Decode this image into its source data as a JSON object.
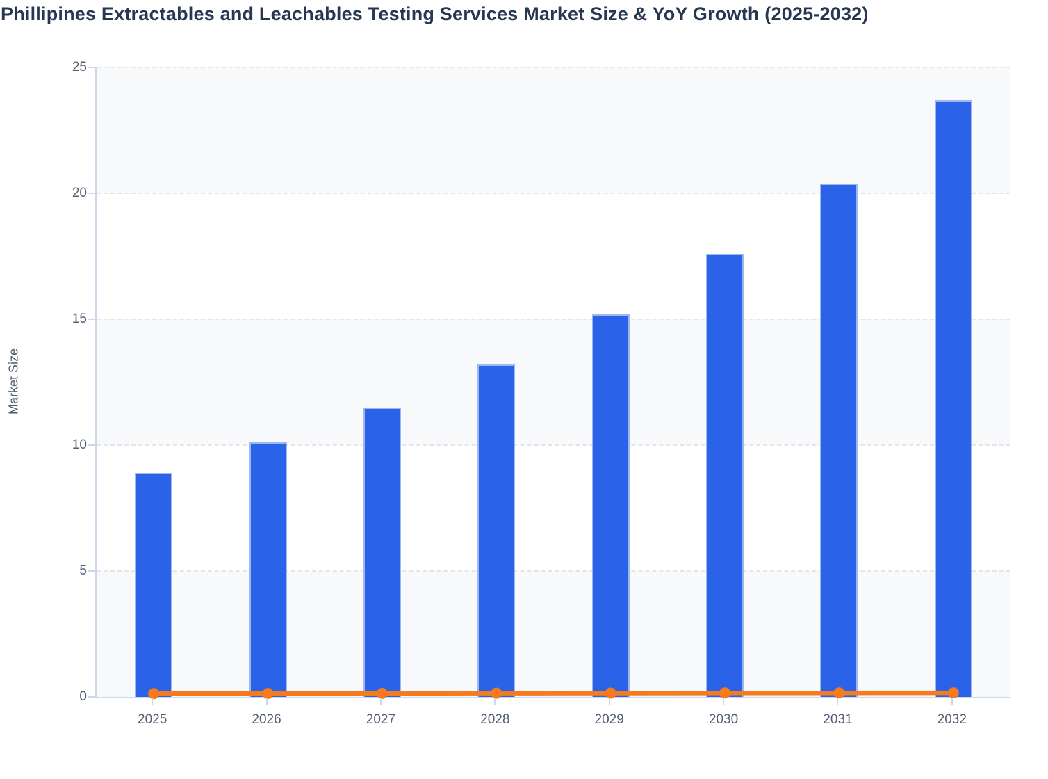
{
  "title": "Phillipines Extractables and Leachables Testing Services Market Size & YoY Growth (2025-2032)",
  "chart_data": {
    "type": "bar",
    "title": "Phillipines Extractables and Leachables Testing Services Market Size & YoY Growth (2025-2032)",
    "categories": [
      "2025",
      "2026",
      "2027",
      "2028",
      "2029",
      "2030",
      "2031",
      "2032"
    ],
    "series": [
      {
        "name": "Market Size",
        "type": "bar",
        "color": "#2a63e8",
        "values": [
          8.9,
          10.1,
          11.5,
          13.2,
          15.2,
          17.6,
          20.4,
          23.7
        ]
      },
      {
        "name": "YoY Growth",
        "type": "line",
        "color": "#f57b1e",
        "values": [
          0.13,
          0.135,
          0.139,
          0.148,
          0.152,
          0.158,
          0.159,
          0.162
        ]
      }
    ],
    "xlabel": "",
    "ylabel": "Market Size",
    "ylim": [
      0,
      25
    ],
    "yticks": [
      0,
      5,
      10,
      15,
      20,
      25
    ],
    "grid": "horizontal-dashed",
    "legend": "none",
    "style": {
      "band_color": "#f8f9fb",
      "band_alt_color": "#ffffff",
      "grid_color": "#e4e6ea",
      "axis_color": "#cdd6ea",
      "tick_label_color": "#535e76",
      "title_color": "#263752",
      "bar_border_color": "#9db7f1",
      "marker_radius": 8,
      "line_width": 6.5
    }
  }
}
